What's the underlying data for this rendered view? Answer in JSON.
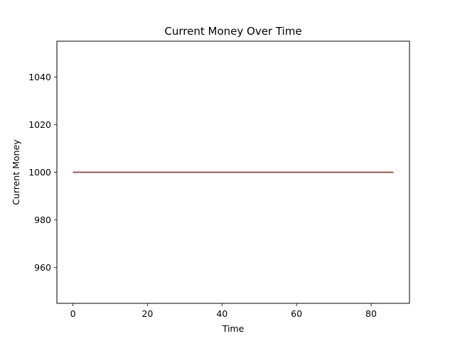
{
  "chart_data": {
    "type": "line",
    "title": "Current Money Over Time",
    "xlabel": "Time",
    "ylabel": "Current Money",
    "xlim": [
      -4.3,
      90.3
    ],
    "ylim": [
      945,
      1055
    ],
    "xticks": [
      0,
      20,
      40,
      60,
      80
    ],
    "yticks": [
      960,
      980,
      1000,
      1020,
      1040
    ],
    "grid": false,
    "legend": "none",
    "series": [
      {
        "color": "#1f77b4",
        "x": [
          0,
          86
        ],
        "y": [
          1000,
          1000
        ]
      },
      {
        "color": "#ff7f0e",
        "x": [
          0,
          86
        ],
        "y": [
          1000,
          1000
        ]
      },
      {
        "color": "#2ca02c",
        "x": [
          0,
          86
        ],
        "y": [
          1000,
          1000
        ]
      },
      {
        "color": "#d62728",
        "x": [
          0,
          86
        ],
        "y": [
          1000,
          1000
        ]
      },
      {
        "color": "#9467bd",
        "x": [
          0,
          86
        ],
        "y": [
          1000,
          1000
        ]
      },
      {
        "color": "#8c564b",
        "x": [
          0,
          86
        ],
        "y": [
          1000,
          1000
        ]
      }
    ]
  }
}
